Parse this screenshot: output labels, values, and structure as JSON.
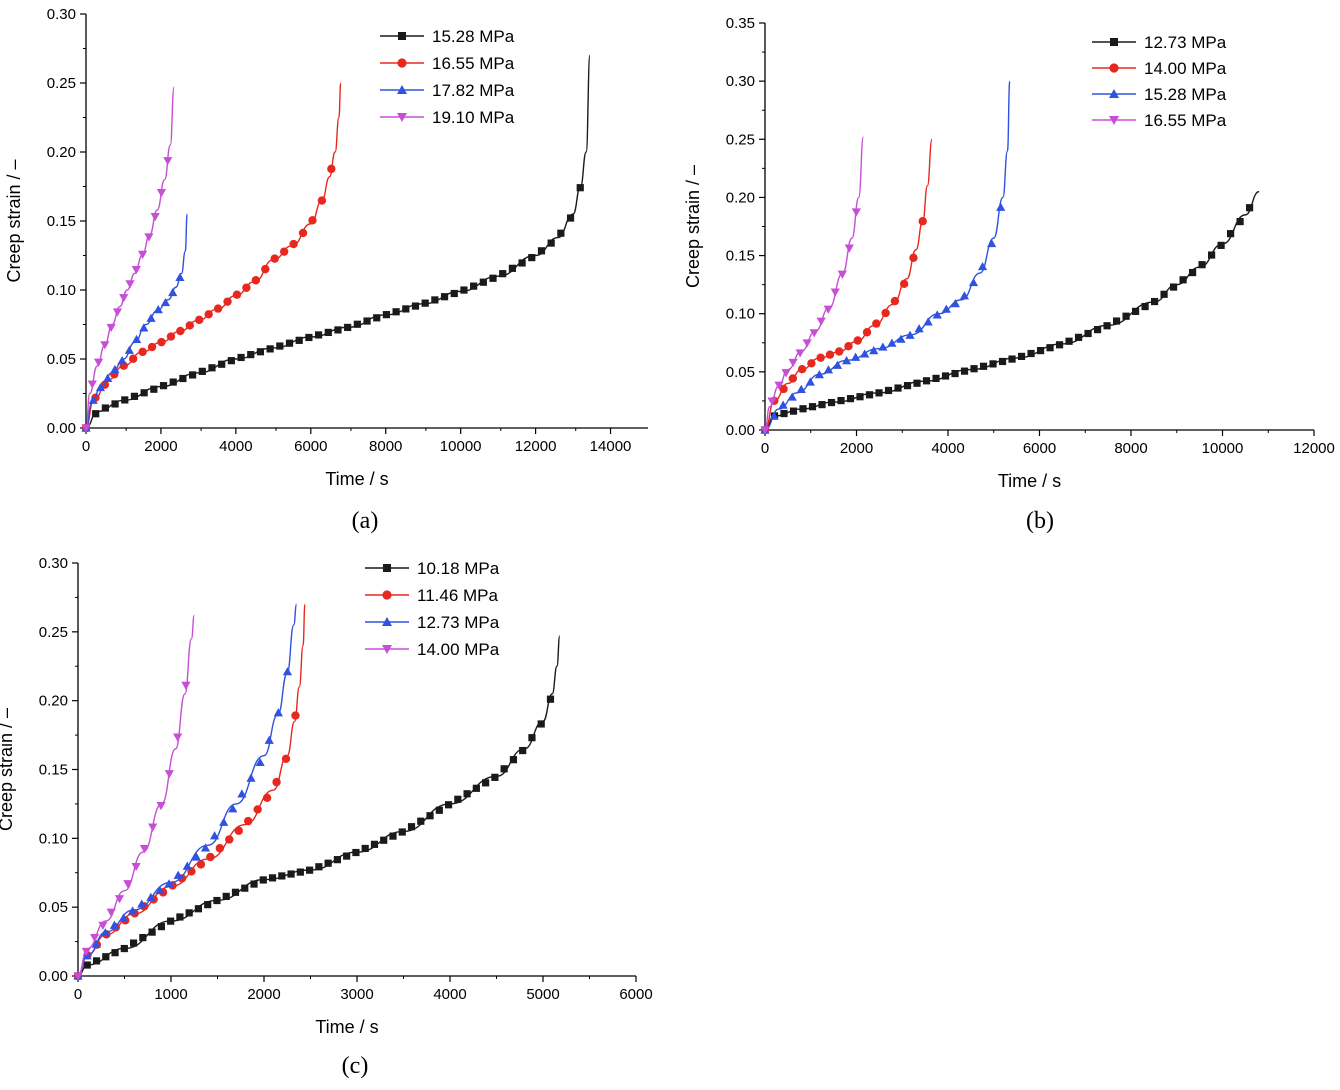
{
  "chart_data": [
    {
      "type": "line",
      "panel_label": "(a)",
      "xlabel": "Time / s",
      "ylabel": "Creep strain / –",
      "xlim": [
        0,
        15000
      ],
      "ylim": [
        0,
        0.3
      ],
      "xticks": [
        "0",
        "2000",
        "4000",
        "6000",
        "8000",
        "10000",
        "12000",
        "14000"
      ],
      "yticks": [
        "0.00",
        "0.05",
        "0.10",
        "0.15",
        "0.20",
        "0.25",
        "0.30"
      ],
      "legend_position": "top-right",
      "series": [
        {
          "name": "15.28 MPa",
          "color": "#1a1a1a",
          "marker": "square",
          "x": [
            0,
            300,
            1000,
            2000,
            3000,
            4000,
            5000,
            6000,
            7000,
            8000,
            9000,
            10000,
            11000,
            12000,
            12600,
            13000,
            13200,
            13350,
            13450
          ],
          "y": [
            0,
            0.012,
            0.02,
            0.03,
            0.04,
            0.05,
            0.058,
            0.066,
            0.073,
            0.082,
            0.09,
            0.099,
            0.11,
            0.125,
            0.138,
            0.155,
            0.175,
            0.2,
            0.27
          ]
        },
        {
          "name": "16.55 MPa",
          "color": "#e8281e",
          "marker": "circle",
          "x": [
            0,
            200,
            600,
            1000,
            1500,
            2000,
            2500,
            3000,
            3500,
            4000,
            4500,
            5000,
            5500,
            6000,
            6300,
            6500,
            6650,
            6750,
            6800
          ],
          "y": [
            0,
            0.02,
            0.035,
            0.045,
            0.055,
            0.062,
            0.07,
            0.078,
            0.086,
            0.096,
            0.106,
            0.122,
            0.132,
            0.148,
            0.165,
            0.182,
            0.2,
            0.225,
            0.25
          ]
        },
        {
          "name": "17.82 MPa",
          "color": "#2f52e0",
          "marker": "triangle-up",
          "x": [
            0,
            150,
            400,
            700,
            1000,
            1300,
            1600,
            1900,
            2200,
            2400,
            2550,
            2650,
            2700
          ],
          "y": [
            0,
            0.018,
            0.03,
            0.04,
            0.05,
            0.062,
            0.075,
            0.085,
            0.093,
            0.102,
            0.112,
            0.128,
            0.155
          ]
        },
        {
          "name": "19.10 MPa",
          "color": "#c74fd6",
          "marker": "triangle-down",
          "x": [
            0,
            100,
            300,
            500,
            700,
            900,
            1100,
            1300,
            1500,
            1700,
            1900,
            2100,
            2250,
            2350
          ],
          "y": [
            0,
            0.025,
            0.045,
            0.06,
            0.075,
            0.088,
            0.1,
            0.112,
            0.125,
            0.14,
            0.158,
            0.18,
            0.205,
            0.247
          ]
        }
      ]
    },
    {
      "type": "line",
      "panel_label": "(b)",
      "xlabel": "Time / s",
      "ylabel": "Creep strain / –",
      "xlim": [
        0,
        12000
      ],
      "ylim": [
        0,
        0.35
      ],
      "xticks": [
        "0",
        "2000",
        "4000",
        "6000",
        "8000",
        "10000",
        "12000"
      ],
      "yticks": [
        "0.00",
        "0.05",
        "0.10",
        "0.15",
        "0.20",
        "0.25",
        "0.30",
        "0.35"
      ],
      "legend_position": "top-right",
      "series": [
        {
          "name": "12.73 MPa",
          "color": "#1a1a1a",
          "marker": "square",
          "x": [
            0,
            200,
            800,
            1500,
            2500,
            3500,
            4500,
            5500,
            6500,
            7500,
            8500,
            9000,
            9500,
            10000,
            10500,
            10800
          ],
          "y": [
            0,
            0.012,
            0.018,
            0.024,
            0.032,
            0.042,
            0.052,
            0.062,
            0.074,
            0.09,
            0.11,
            0.125,
            0.14,
            0.16,
            0.185,
            0.205
          ]
        },
        {
          "name": "14.00 MPa",
          "color": "#e8281e",
          "marker": "circle",
          "x": [
            0,
            200,
            500,
            800,
            1200,
            1600,
            2000,
            2400,
            2800,
            3100,
            3300,
            3450,
            3550,
            3650
          ],
          "y": [
            0,
            0.025,
            0.04,
            0.052,
            0.062,
            0.067,
            0.076,
            0.09,
            0.108,
            0.13,
            0.155,
            0.18,
            0.21,
            0.25
          ]
        },
        {
          "name": "15.28 MPa",
          "color": "#2f52e0",
          "marker": "triangle-up",
          "x": [
            0,
            300,
            700,
            1200,
            1800,
            2500,
            3200,
            3800,
            4300,
            4700,
            5000,
            5200,
            5300,
            5350
          ],
          "y": [
            0,
            0.018,
            0.032,
            0.048,
            0.06,
            0.07,
            0.082,
            0.1,
            0.112,
            0.135,
            0.165,
            0.2,
            0.24,
            0.3
          ]
        },
        {
          "name": "16.55 MPa",
          "color": "#c74fd6",
          "marker": "triangle-down",
          "x": [
            0,
            100,
            300,
            500,
            800,
            1100,
            1400,
            1700,
            1900,
            2050,
            2150
          ],
          "y": [
            0,
            0.02,
            0.038,
            0.052,
            0.068,
            0.085,
            0.105,
            0.135,
            0.165,
            0.2,
            0.252
          ]
        }
      ]
    },
    {
      "type": "line",
      "panel_label": "(c)",
      "xlabel": "Time / s",
      "ylabel": "Creep strain / –",
      "xlim": [
        0,
        6000
      ],
      "ylim": [
        0,
        0.3
      ],
      "xticks": [
        "0",
        "1000",
        "2000",
        "3000",
        "4000",
        "5000",
        "6000"
      ],
      "yticks": [
        "0.00",
        "0.05",
        "0.10",
        "0.15",
        "0.20",
        "0.25",
        "0.30"
      ],
      "legend_position": "top-left",
      "series": [
        {
          "name": "10.18 MPa",
          "color": "#1a1a1a",
          "marker": "square",
          "x": [
            0,
            100,
            500,
            1000,
            1500,
            2000,
            2500,
            3000,
            3500,
            4000,
            4500,
            4800,
            5000,
            5100,
            5150,
            5180
          ],
          "y": [
            0,
            0.008,
            0.02,
            0.04,
            0.055,
            0.07,
            0.077,
            0.09,
            0.105,
            0.125,
            0.145,
            0.165,
            0.185,
            0.205,
            0.225,
            0.247
          ]
        },
        {
          "name": "11.46 MPa",
          "color": "#e8281e",
          "marker": "circle",
          "x": [
            0,
            100,
            300,
            600,
            1000,
            1400,
            1800,
            2100,
            2250,
            2330,
            2380,
            2420,
            2440
          ],
          "y": [
            0,
            0.015,
            0.03,
            0.045,
            0.065,
            0.085,
            0.11,
            0.135,
            0.16,
            0.185,
            0.21,
            0.24,
            0.27
          ]
        },
        {
          "name": "12.73 MPa",
          "color": "#2f52e0",
          "marker": "triangle-up",
          "x": [
            0,
            100,
            300,
            600,
            1000,
            1400,
            1700,
            2000,
            2150,
            2250,
            2320,
            2350
          ],
          "y": [
            0,
            0.015,
            0.032,
            0.048,
            0.068,
            0.095,
            0.125,
            0.16,
            0.19,
            0.22,
            0.255,
            0.27
          ]
        },
        {
          "name": "14.00 MPa",
          "color": "#c74fd6",
          "marker": "triangle-down",
          "x": [
            0,
            100,
            300,
            500,
            700,
            900,
            1050,
            1150,
            1220,
            1250
          ],
          "y": [
            0,
            0.02,
            0.04,
            0.062,
            0.09,
            0.125,
            0.165,
            0.205,
            0.245,
            0.262
          ]
        }
      ]
    }
  ]
}
